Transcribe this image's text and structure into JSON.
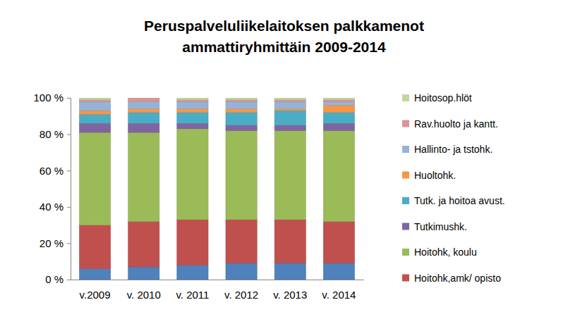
{
  "chart_data": {
    "type": "bar",
    "title": "Peruspalveluliikelaitoksen palkkamenot ammattiryhmittäin 2009-2014",
    "categories": [
      "v.2009",
      "v. 2010",
      "v. 2011",
      "v. 2012",
      "v. 2013",
      "v. 2014"
    ],
    "stacked": true,
    "grid": false,
    "legend": "right",
    "ylim": [
      0,
      100
    ],
    "yticks": [
      {
        "value": 0,
        "label": "0 %"
      },
      {
        "value": 20,
        "label": "20 %"
      },
      {
        "value": 40,
        "label": "40 %"
      },
      {
        "value": 60,
        "label": "60 %"
      },
      {
        "value": 80,
        "label": "80 %"
      },
      {
        "value": 100,
        "label": "100 %"
      }
    ],
    "series": [
      {
        "color": "#4f81bd",
        "values": [
          6,
          7,
          8,
          9,
          9,
          9
        ]
      },
      {
        "name": "Hoitohk,amk/ opisto",
        "color": "#c0504d",
        "values": [
          24,
          25,
          25,
          24,
          24,
          23
        ]
      },
      {
        "name": "Hoitohk, koulu",
        "color": "#9bbb59",
        "values": [
          51,
          49,
          50,
          49,
          49,
          50
        ]
      },
      {
        "name": "Tutkimushk.",
        "color": "#8064a2",
        "values": [
          5,
          5,
          3,
          3,
          3,
          4
        ]
      },
      {
        "name": "Tutk. ja hoitoa avust.",
        "color": "#4bacc6",
        "values": [
          5,
          6,
          6,
          7,
          8,
          6
        ]
      },
      {
        "name": "Huoltohk.",
        "color": "#f79646",
        "values": [
          2,
          2,
          2,
          2,
          1,
          4
        ]
      },
      {
        "name": "Hallinto- ja tstohk.",
        "color": "#95b3d7",
        "values": [
          5,
          4,
          4,
          4,
          4,
          2
        ]
      },
      {
        "name": "Rav.huolto ja kantt.",
        "color": "#d99694",
        "values": [
          1,
          2,
          1,
          1,
          1,
          1
        ]
      },
      {
        "name": "Hoitosop.hlöt",
        "color": "#c3d69b",
        "values": [
          1,
          0,
          1,
          1,
          1,
          1
        ]
      }
    ]
  }
}
